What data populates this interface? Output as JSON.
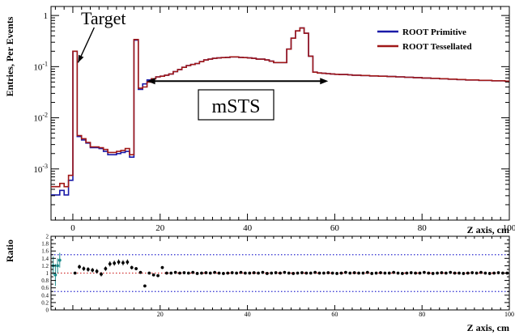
{
  "chart_data": [
    {
      "type": "line",
      "title": "",
      "ylabel": "Entries, Per Events",
      "xlabel": "Z axis, cm",
      "xlim": [
        -5,
        100
      ],
      "ylim": [
        0.0001,
        1.5
      ],
      "yscale": "log",
      "xticks": [
        0,
        20,
        40,
        60,
        80,
        100
      ],
      "xtick_labels": [
        "0",
        "20",
        "40",
        "60",
        "80",
        "100"
      ],
      "yticks": [
        0.001,
        0.01,
        0.1,
        1
      ],
      "ytick_labels": [
        "10^-3",
        "10^-2",
        "10^-1",
        "1"
      ],
      "legend": {
        "placement": "top-right"
      },
      "annotations": [
        {
          "text": "Target",
          "x": 6.5,
          "y": 0.95,
          "arrow_to": [
            1.2,
            0.12
          ]
        },
        {
          "text": "mSTS",
          "x": 37.5,
          "y": 0.016,
          "boxed": true,
          "span": [
            17,
            58.5
          ],
          "span_y": 0.052
        }
      ],
      "x": [
        -5,
        -4,
        -3,
        -2,
        -1,
        0,
        1,
        2,
        3,
        4,
        5,
        6,
        7,
        8,
        9,
        10,
        11,
        12,
        13,
        14,
        15,
        16,
        17,
        18,
        19,
        20,
        21,
        22,
        23,
        24,
        25,
        26,
        27,
        28,
        29,
        30,
        31,
        32,
        33,
        34,
        35,
        36,
        37,
        38,
        39,
        40,
        41,
        42,
        43,
        44,
        45,
        46,
        47,
        48,
        49,
        50,
        51,
        52,
        53,
        54,
        55,
        56,
        57,
        58,
        59,
        60,
        61,
        62,
        63,
        64,
        65,
        66,
        67,
        68,
        69,
        70,
        71,
        72,
        73,
        74,
        75,
        76,
        77,
        78,
        79,
        80,
        81,
        82,
        83,
        84,
        85,
        86,
        87,
        88,
        89,
        90,
        91,
        92,
        93,
        94,
        95,
        96,
        97,
        98,
        99,
        100
      ],
      "series": [
        {
          "name": "ROOT Primitive",
          "color": "#1a1aa8",
          "values": [
            0.00031,
            0.00031,
            0.00038,
            0.00031,
            0.0006,
            0.2,
            0.0043,
            0.0037,
            0.0032,
            0.0026,
            0.0026,
            0.0025,
            0.0022,
            0.0019,
            0.0019,
            0.002,
            0.0021,
            0.0022,
            0.0017,
            0.33,
            0.036,
            0.046,
            0.055,
            0.058,
            0.063,
            0.065,
            0.068,
            0.072,
            0.08,
            0.088,
            0.097,
            0.105,
            0.11,
            0.115,
            0.125,
            0.135,
            0.14,
            0.145,
            0.148,
            0.15,
            0.152,
            0.155,
            0.155,
            0.152,
            0.15,
            0.148,
            0.145,
            0.14,
            0.14,
            0.135,
            0.128,
            0.12,
            0.12,
            0.12,
            0.22,
            0.36,
            0.5,
            0.57,
            0.45,
            0.16,
            0.078,
            0.075,
            0.074,
            0.073,
            0.072,
            0.071,
            0.07,
            0.07,
            0.069,
            0.068,
            0.068,
            0.067,
            0.067,
            0.066,
            0.066,
            0.065,
            0.065,
            0.064,
            0.064,
            0.063,
            0.063,
            0.062,
            0.062,
            0.061,
            0.061,
            0.06,
            0.06,
            0.059,
            0.059,
            0.058,
            0.058,
            0.057,
            0.057,
            0.056,
            0.056,
            0.055,
            0.055,
            0.055,
            0.054,
            0.054,
            0.054,
            0.053,
            0.053,
            0.053,
            0.052,
            0.052
          ]
        },
        {
          "name": "ROOT Tessellated",
          "color": "#a01818",
          "values": [
            0.00045,
            0.00045,
            0.00052,
            0.00045,
            0.00075,
            0.2,
            0.0045,
            0.0039,
            0.0033,
            0.0027,
            0.0027,
            0.0026,
            0.0024,
            0.0021,
            0.0021,
            0.0022,
            0.0023,
            0.0025,
            0.0019,
            0.34,
            0.038,
            0.04,
            0.05,
            0.058,
            0.063,
            0.065,
            0.068,
            0.072,
            0.08,
            0.088,
            0.097,
            0.105,
            0.11,
            0.115,
            0.125,
            0.135,
            0.14,
            0.145,
            0.148,
            0.15,
            0.152,
            0.155,
            0.155,
            0.152,
            0.15,
            0.148,
            0.145,
            0.14,
            0.14,
            0.135,
            0.128,
            0.12,
            0.12,
            0.12,
            0.22,
            0.36,
            0.5,
            0.57,
            0.45,
            0.16,
            0.078,
            0.075,
            0.074,
            0.073,
            0.072,
            0.071,
            0.07,
            0.07,
            0.069,
            0.068,
            0.068,
            0.067,
            0.067,
            0.066,
            0.066,
            0.065,
            0.065,
            0.064,
            0.064,
            0.063,
            0.063,
            0.062,
            0.062,
            0.061,
            0.061,
            0.06,
            0.06,
            0.059,
            0.059,
            0.058,
            0.058,
            0.057,
            0.057,
            0.056,
            0.056,
            0.055,
            0.055,
            0.055,
            0.054,
            0.054,
            0.054,
            0.053,
            0.053,
            0.053,
            0.052,
            0.052
          ]
        }
      ]
    },
    {
      "type": "scatter",
      "title": "",
      "ylabel": "Ratio",
      "xlabel": "Z axis, cm",
      "xlim": [
        -5,
        100
      ],
      "ylim": [
        0,
        2
      ],
      "xticks": [
        20,
        40,
        60,
        80,
        100
      ],
      "xtick_labels": [
        "20",
        "40",
        "60",
        "80",
        "100"
      ],
      "yticks": [
        0,
        0.2,
        0.4,
        0.6,
        0.8,
        1,
        1.2,
        1.4,
        1.6,
        1.8,
        2
      ],
      "ytick_labels": [
        "0",
        "0.2",
        "0.4",
        "0.6",
        "0.8",
        "1",
        "1.2",
        "1.4",
        "1.6",
        "1.8",
        "2"
      ],
      "reference_lines": [
        {
          "y": 1.0,
          "color": "#d03030",
          "style": "dotted"
        },
        {
          "y": 1.5,
          "color": "#2a2ad0",
          "style": "dotted"
        },
        {
          "y": 0.5,
          "color": "#2a2ad0",
          "style": "dotted"
        }
      ],
      "points": [
        {
          "x": -4.5,
          "y": 1.2,
          "err": 0.25,
          "color": "#1a8a8a"
        },
        {
          "x": -4,
          "y": 0.95,
          "err": 0.3,
          "color": "#1a8a8a"
        },
        {
          "x": -3.5,
          "y": 1.2,
          "err": 0.2,
          "color": "#1a8a8a"
        },
        {
          "x": -3,
          "y": 1.35,
          "err": 0.2,
          "color": "#1a8a8a"
        },
        {
          "x": 0.5,
          "y": 1.0,
          "err": 0.02
        },
        {
          "x": 1.5,
          "y": 1.17,
          "err": 0.06
        },
        {
          "x": 2.5,
          "y": 1.12,
          "err": 0.06
        },
        {
          "x": 3.5,
          "y": 1.1,
          "err": 0.06
        },
        {
          "x": 4.5,
          "y": 1.08,
          "err": 0.06
        },
        {
          "x": 5.5,
          "y": 1.05,
          "err": 0.06
        },
        {
          "x": 6.5,
          "y": 0.97,
          "err": 0.06
        },
        {
          "x": 7.5,
          "y": 1.12,
          "err": 0.06
        },
        {
          "x": 8.5,
          "y": 1.25,
          "err": 0.07
        },
        {
          "x": 9.5,
          "y": 1.27,
          "err": 0.07
        },
        {
          "x": 10.5,
          "y": 1.3,
          "err": 0.07
        },
        {
          "x": 11.5,
          "y": 1.28,
          "err": 0.07
        },
        {
          "x": 12.5,
          "y": 1.3,
          "err": 0.07
        },
        {
          "x": 13.5,
          "y": 1.15,
          "err": 0.05
        },
        {
          "x": 14.5,
          "y": 1.12,
          "err": 0.04
        },
        {
          "x": 15.5,
          "y": 1.02,
          "err": 0.03
        },
        {
          "x": 16.5,
          "y": 0.65,
          "err": 0.03
        },
        {
          "x": 17.5,
          "y": 1.0,
          "err": 0.02
        },
        {
          "x": 18.5,
          "y": 0.95,
          "err": 0.02
        },
        {
          "x": 19.5,
          "y": 0.93,
          "err": 0.02
        },
        {
          "x": 20.5,
          "y": 1.15,
          "err": 0.02
        },
        {
          "x": 21.5,
          "y": 1.0,
          "err": 0.02
        },
        {
          "x": 22.5,
          "y": 1.0,
          "err": 0.02
        },
        {
          "x": 23.5,
          "y": 1.02,
          "err": 0.02
        },
        {
          "x": 24.5,
          "y": 1.0,
          "err": 0.02
        },
        {
          "x": 25.5,
          "y": 1.01,
          "err": 0.02
        },
        {
          "x": 26.5,
          "y": 1.0,
          "err": 0.02
        },
        {
          "x": 27.5,
          "y": 1.02,
          "err": 0.02
        },
        {
          "x": 28.5,
          "y": 0.99,
          "err": 0.02
        },
        {
          "x": 29.5,
          "y": 1.0,
          "err": 0.02
        },
        {
          "x": 30.5,
          "y": 1.01,
          "err": 0.02
        },
        {
          "x": 31.5,
          "y": 1.0,
          "err": 0.02
        },
        {
          "x": 32.5,
          "y": 1.02,
          "err": 0.02
        },
        {
          "x": 33.5,
          "y": 1.0,
          "err": 0.02
        },
        {
          "x": 34.5,
          "y": 0.99,
          "err": 0.02
        },
        {
          "x": 35.5,
          "y": 1.0,
          "err": 0.02
        },
        {
          "x": 36.5,
          "y": 1.01,
          "err": 0.02
        },
        {
          "x": 37.5,
          "y": 1.0,
          "err": 0.02
        },
        {
          "x": 38.5,
          "y": 1.02,
          "err": 0.02
        },
        {
          "x": 39.5,
          "y": 1.0,
          "err": 0.02
        },
        {
          "x": 40.5,
          "y": 1.0,
          "err": 0.02
        },
        {
          "x": 41.5,
          "y": 1.01,
          "err": 0.02
        },
        {
          "x": 42.5,
          "y": 1.0,
          "err": 0.02
        },
        {
          "x": 43.5,
          "y": 1.02,
          "err": 0.02
        },
        {
          "x": 44.5,
          "y": 0.99,
          "err": 0.02
        },
        {
          "x": 45.5,
          "y": 1.0,
          "err": 0.02
        },
        {
          "x": 46.5,
          "y": 1.01,
          "err": 0.02
        },
        {
          "x": 47.5,
          "y": 1.0,
          "err": 0.02
        },
        {
          "x": 48.5,
          "y": 1.02,
          "err": 0.02
        },
        {
          "x": 49.5,
          "y": 1.0,
          "err": 0.02
        },
        {
          "x": 50.5,
          "y": 0.99,
          "err": 0.02
        },
        {
          "x": 51.5,
          "y": 1.0,
          "err": 0.02
        },
        {
          "x": 52.5,
          "y": 1.01,
          "err": 0.02
        },
        {
          "x": 53.5,
          "y": 1.0,
          "err": 0.02
        },
        {
          "x": 54.5,
          "y": 1.0,
          "err": 0.02
        },
        {
          "x": 55.5,
          "y": 1.02,
          "err": 0.02
        },
        {
          "x": 56.5,
          "y": 1.0,
          "err": 0.02
        },
        {
          "x": 57.5,
          "y": 1.0,
          "err": 0.02
        },
        {
          "x": 58.5,
          "y": 1.01,
          "err": 0.02
        },
        {
          "x": 59.5,
          "y": 1.0,
          "err": 0.02
        },
        {
          "x": 60.5,
          "y": 0.99,
          "err": 0.02
        },
        {
          "x": 61.5,
          "y": 1.0,
          "err": 0.02
        },
        {
          "x": 62.5,
          "y": 1.02,
          "err": 0.02
        },
        {
          "x": 63.5,
          "y": 1.0,
          "err": 0.02
        },
        {
          "x": 64.5,
          "y": 1.01,
          "err": 0.02
        },
        {
          "x": 65.5,
          "y": 1.0,
          "err": 0.02
        },
        {
          "x": 66.5,
          "y": 1.0,
          "err": 0.02
        },
        {
          "x": 67.5,
          "y": 1.02,
          "err": 0.02
        },
        {
          "x": 68.5,
          "y": 0.99,
          "err": 0.02
        },
        {
          "x": 69.5,
          "y": 1.0,
          "err": 0.02
        },
        {
          "x": 70.5,
          "y": 1.01,
          "err": 0.02
        },
        {
          "x": 71.5,
          "y": 1.0,
          "err": 0.02
        },
        {
          "x": 72.5,
          "y": 1.0,
          "err": 0.02
        },
        {
          "x": 73.5,
          "y": 1.02,
          "err": 0.02
        },
        {
          "x": 74.5,
          "y": 1.0,
          "err": 0.02
        },
        {
          "x": 75.5,
          "y": 0.99,
          "err": 0.02
        },
        {
          "x": 76.5,
          "y": 1.0,
          "err": 0.02
        },
        {
          "x": 77.5,
          "y": 1.01,
          "err": 0.02
        },
        {
          "x": 78.5,
          "y": 1.0,
          "err": 0.02
        },
        {
          "x": 79.5,
          "y": 1.0,
          "err": 0.02
        },
        {
          "x": 80.5,
          "y": 1.02,
          "err": 0.02
        },
        {
          "x": 81.5,
          "y": 1.0,
          "err": 0.02
        },
        {
          "x": 82.5,
          "y": 0.99,
          "err": 0.02
        },
        {
          "x": 83.5,
          "y": 1.0,
          "err": 0.02
        },
        {
          "x": 84.5,
          "y": 1.01,
          "err": 0.02
        },
        {
          "x": 85.5,
          "y": 1.0,
          "err": 0.02
        },
        {
          "x": 86.5,
          "y": 1.02,
          "err": 0.02
        },
        {
          "x": 87.5,
          "y": 1.0,
          "err": 0.02
        },
        {
          "x": 88.5,
          "y": 1.0,
          "err": 0.02
        },
        {
          "x": 89.5,
          "y": 0.99,
          "err": 0.02
        },
        {
          "x": 90.5,
          "y": 1.0,
          "err": 0.02
        },
        {
          "x": 91.5,
          "y": 1.01,
          "err": 0.02
        },
        {
          "x": 92.5,
          "y": 1.0,
          "err": 0.02
        },
        {
          "x": 93.5,
          "y": 1.02,
          "err": 0.02
        },
        {
          "x": 94.5,
          "y": 1.0,
          "err": 0.02
        },
        {
          "x": 95.5,
          "y": 0.99,
          "err": 0.02
        },
        {
          "x": 96.5,
          "y": 1.0,
          "err": 0.02
        },
        {
          "x": 97.5,
          "y": 1.01,
          "err": 0.02
        },
        {
          "x": 98.5,
          "y": 1.0,
          "err": 0.02
        },
        {
          "x": 99.5,
          "y": 1.0,
          "err": 0.02
        }
      ]
    }
  ]
}
